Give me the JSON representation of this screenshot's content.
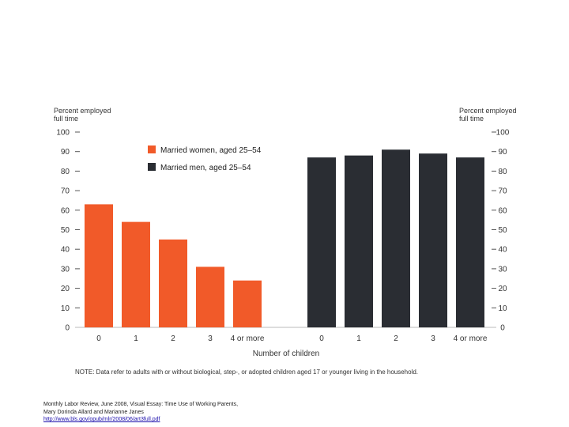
{
  "chart_data": {
    "type": "bar",
    "ylim": [
      0,
      100
    ],
    "yticks": [
      0,
      10,
      20,
      30,
      40,
      50,
      60,
      70,
      80,
      90,
      100
    ],
    "left_axis_label": [
      "Percent employed",
      "full time"
    ],
    "right_axis_label": [
      "Percent employed",
      "full time"
    ],
    "xlabel": "Number of children",
    "legend_position": "top-left",
    "grid": false,
    "series": [
      {
        "name": "Married women, aged 25–54",
        "color": "#f15a29",
        "categories": [
          "0",
          "1",
          "2",
          "3",
          "4 or more"
        ],
        "values": [
          63,
          54,
          45,
          31,
          24
        ]
      },
      {
        "name": "Married men, aged 25–54",
        "color": "#2a2d33",
        "categories": [
          "0",
          "1",
          "2",
          "3",
          "4 or more"
        ],
        "values": [
          87,
          88,
          91,
          89,
          87
        ]
      }
    ],
    "note": "NOTE: Data refer to adults with or without biological, step-, or adopted children aged 17 or younger living in the household."
  },
  "source": {
    "line1": "Monthly Labor Review, June 2008, Visual Essay: Time Use of Working Parents,",
    "line2": "Mary Dorinda Allard and Marianne Janes",
    "link": "http://www.bls.gov/opub/mlr/2008/06/art3full.pdf"
  }
}
